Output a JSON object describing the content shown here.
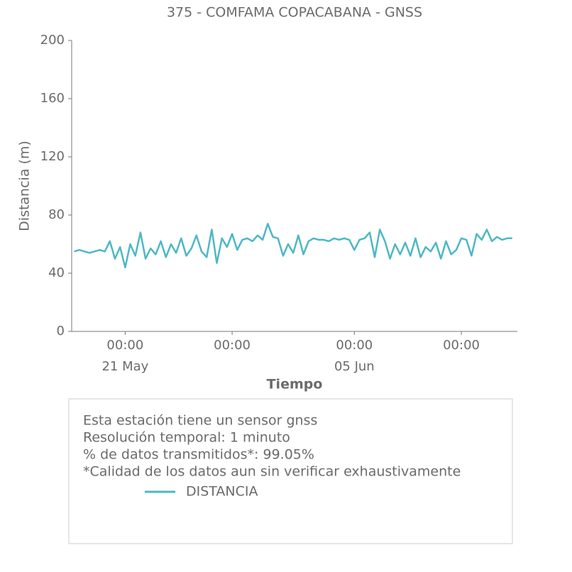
{
  "chart_data": {
    "type": "line",
    "title": "375 - COMFAMA COPACABANA - GNSS",
    "x_label": "Tiempo",
    "y_label": "Distancia (m)",
    "x": [
      "05-17T16:00",
      "05-18T00:00",
      "05-18T08:00",
      "05-18T16:00",
      "05-19T00:00",
      "05-19T08:00",
      "05-19T16:00",
      "05-20T00:00",
      "05-20T08:00",
      "05-20T16:00",
      "05-21T00:00",
      "05-21T08:00",
      "05-21T16:00",
      "05-22T00:00",
      "05-22T08:00",
      "05-22T16:00",
      "05-23T00:00",
      "05-23T08:00",
      "05-23T16:00",
      "05-24T00:00",
      "05-24T08:00",
      "05-24T16:00",
      "05-25T00:00",
      "05-25T08:00",
      "05-25T16:00",
      "05-26T00:00",
      "05-26T08:00",
      "05-26T16:00",
      "05-27T00:00",
      "05-27T08:00",
      "05-27T16:00",
      "05-28T00:00",
      "05-28T08:00",
      "05-28T16:00",
      "05-29T00:00",
      "05-29T08:00",
      "05-29T16:00",
      "05-30T00:00",
      "05-30T08:00",
      "05-30T16:00",
      "05-31T00:00",
      "05-31T08:00",
      "05-31T16:00",
      "06-01T00:00",
      "06-01T08:00",
      "06-01T16:00",
      "06-02T00:00",
      "06-02T08:00",
      "06-02T16:00",
      "06-03T00:00",
      "06-03T08:00",
      "06-03T16:00",
      "06-04T00:00",
      "06-04T08:00",
      "06-04T16:00",
      "06-05T00:00",
      "06-05T08:00",
      "06-05T16:00",
      "06-06T00:00",
      "06-06T08:00",
      "06-06T16:00",
      "06-07T00:00",
      "06-07T08:00",
      "06-07T16:00",
      "06-08T00:00",
      "06-08T08:00",
      "06-08T16:00",
      "06-09T00:00",
      "06-09T08:00",
      "06-09T16:00",
      "06-10T00:00",
      "06-10T08:00",
      "06-10T16:00",
      "06-11T00:00",
      "06-11T08:00",
      "06-11T16:00",
      "06-12T00:00",
      "06-12T08:00",
      "06-12T16:00",
      "06-13T00:00",
      "06-13T08:00",
      "06-13T16:00",
      "06-14T00:00",
      "06-14T08:00",
      "06-14T16:00",
      "06-15T00:00",
      "06-15T08:00"
    ],
    "series": [
      {
        "name": "DISTANCIA",
        "color": "#4db8c4",
        "values": [
          55,
          56,
          55,
          54,
          55,
          56,
          55,
          62,
          50,
          58,
          44,
          60,
          52,
          68,
          50,
          57,
          53,
          62,
          51,
          60,
          54,
          64,
          52,
          57,
          66,
          55,
          51,
          70,
          47,
          64,
          58,
          67,
          56,
          63,
          64,
          62,
          66,
          63,
          74,
          65,
          64,
          52,
          60,
          54,
          66,
          53,
          62,
          64,
          63,
          63,
          62,
          64,
          63,
          64,
          63,
          56,
          63,
          64,
          68,
          51,
          70,
          62,
          50,
          60,
          53,
          61,
          52,
          64,
          51,
          58,
          55,
          61,
          50,
          62,
          53,
          56,
          64,
          63,
          52,
          67,
          63,
          70,
          62,
          65,
          63,
          64,
          64
        ]
      }
    ],
    "xlim": [
      "05-17T12:00",
      "06-15T16:00"
    ],
    "xticks": [
      {
        "value": "05-21T00:00",
        "label": "00:00",
        "date_label": "21 May"
      },
      {
        "value": "05-28T00:00",
        "label": "00:00"
      },
      {
        "value": "06-05T00:00",
        "label": "00:00",
        "date_label": "05 Jun"
      },
      {
        "value": "06-12T00:00",
        "label": "00:00"
      }
    ],
    "ylim": [
      0,
      200
    ],
    "yticks": [
      0,
      40,
      80,
      120,
      160,
      200
    ],
    "notes": [
      "Esta estación tiene un sensor gnss",
      "Resolución temporal: 1 minuto",
      "% de datos transmitidos*: 99.05%",
      "*Calidad de los datos aun sin verificar exhaustivamente"
    ]
  }
}
